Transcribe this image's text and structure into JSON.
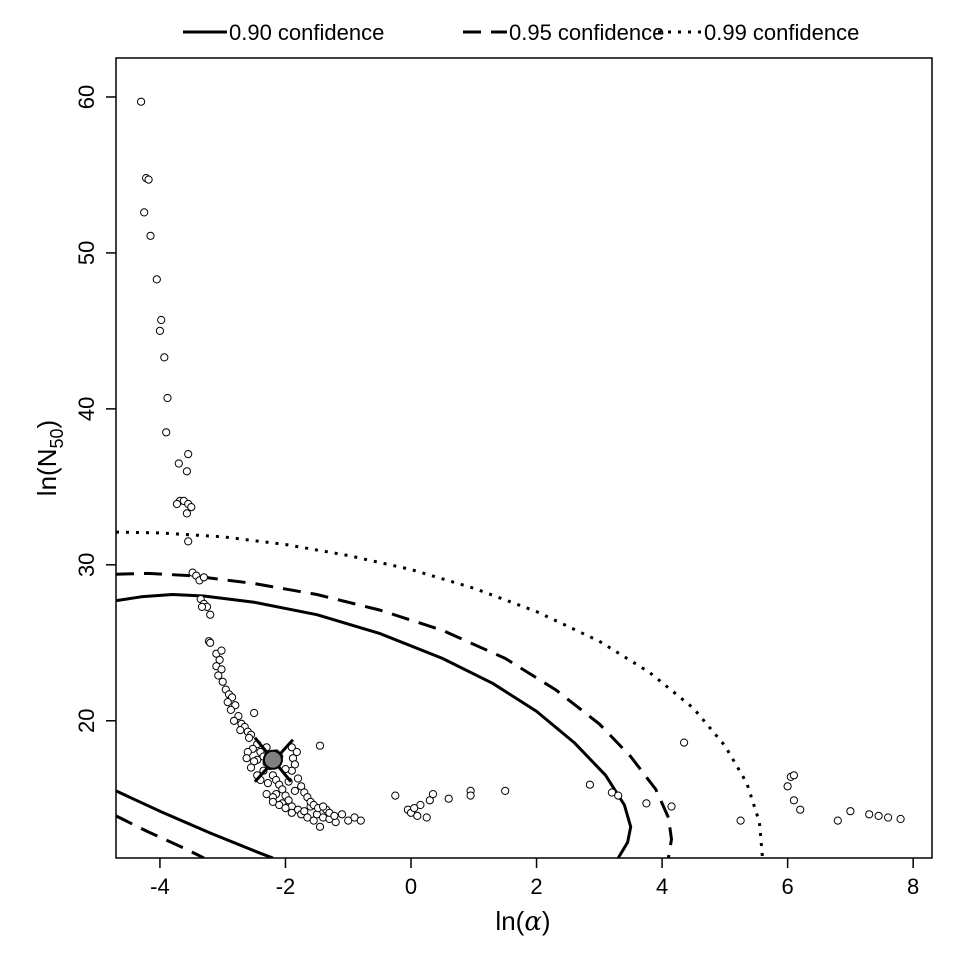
{
  "chart_data": {
    "type": "scatter",
    "xlabel_base": "ln(",
    "xlabel_symbol": "α",
    "xlabel_close": ")",
    "ylabel_base": "ln(N",
    "ylabel_sub": "50",
    "ylabel_close": ")",
    "xlim": [
      -4.7,
      8.3
    ],
    "ylim": [
      11.2,
      62.5
    ],
    "x_ticks": [
      -4,
      -2,
      0,
      2,
      4,
      6,
      8
    ],
    "x_tick_labels": [
      "-4",
      "-2",
      "0",
      "2",
      "4",
      "6",
      "8"
    ],
    "y_ticks": [
      20,
      30,
      40,
      50,
      60
    ],
    "y_tick_labels": [
      "20",
      "30",
      "40",
      "50",
      "60"
    ],
    "grid": false,
    "legend_position": "top",
    "legend": [
      {
        "label": "0.90 confidence",
        "style": "solid"
      },
      {
        "label": "0.95 confidence",
        "style": "dashed"
      },
      {
        "label": "0.99 confidence",
        "style": "dotted"
      }
    ],
    "mle_point": {
      "x": -2.2,
      "y": 17.5
    },
    "series": [
      {
        "style": "solid",
        "points": [
          [
            -4.7,
            27.7
          ],
          [
            -4.3,
            27.95
          ],
          [
            -3.8,
            28.1
          ],
          [
            -3.3,
            28.0
          ],
          [
            -2.5,
            27.6
          ],
          [
            -1.5,
            26.8
          ],
          [
            -0.5,
            25.6
          ],
          [
            0.5,
            24.0
          ],
          [
            1.3,
            22.4
          ],
          [
            2.0,
            20.6
          ],
          [
            2.6,
            18.6
          ],
          [
            3.1,
            16.5
          ],
          [
            3.4,
            14.6
          ],
          [
            3.5,
            13.2
          ],
          [
            3.45,
            12.2
          ],
          [
            3.3,
            11.2
          ]
        ]
      },
      {
        "style": "solid",
        "points": [
          [
            -4.7,
            15.5
          ],
          [
            -4.0,
            14.2
          ],
          [
            -3.2,
            12.8
          ],
          [
            -2.4,
            11.5
          ],
          [
            -2.2,
            11.2
          ]
        ]
      },
      {
        "style": "dashed",
        "points": [
          [
            -4.7,
            29.4
          ],
          [
            -4.2,
            29.45
          ],
          [
            -3.5,
            29.3
          ],
          [
            -2.5,
            28.8
          ],
          [
            -1.5,
            28.1
          ],
          [
            -0.5,
            27.1
          ],
          [
            0.5,
            25.8
          ],
          [
            1.5,
            24.0
          ],
          [
            2.3,
            22.0
          ],
          [
            3.0,
            19.8
          ],
          [
            3.5,
            17.7
          ],
          [
            3.9,
            15.6
          ],
          [
            4.1,
            13.8
          ],
          [
            4.15,
            12.4
          ],
          [
            4.1,
            11.2
          ]
        ]
      },
      {
        "style": "dashed",
        "points": [
          [
            -4.7,
            13.9
          ],
          [
            -4.2,
            12.9
          ],
          [
            -3.6,
            11.8
          ],
          [
            -3.3,
            11.2
          ]
        ]
      },
      {
        "style": "dotted",
        "points": [
          [
            -4.7,
            32.1
          ],
          [
            -4.0,
            32.05
          ],
          [
            -3.0,
            31.8
          ],
          [
            -2.0,
            31.3
          ],
          [
            -1.0,
            30.6
          ],
          [
            0.0,
            29.7
          ],
          [
            1.0,
            28.5
          ],
          [
            2.0,
            27.0
          ],
          [
            3.0,
            25.1
          ],
          [
            3.8,
            23.1
          ],
          [
            4.5,
            20.8
          ],
          [
            5.0,
            18.4
          ],
          [
            5.35,
            16.0
          ],
          [
            5.55,
            13.5
          ],
          [
            5.6,
            11.2
          ]
        ]
      }
    ],
    "points": [
      [
        -4.3,
        59.7
      ],
      [
        -4.22,
        54.8
      ],
      [
        -4.18,
        54.7
      ],
      [
        -4.25,
        52.6
      ],
      [
        -4.15,
        51.1
      ],
      [
        -4.05,
        48.3
      ],
      [
        -3.98,
        45.7
      ],
      [
        -4.0,
        45.0
      ],
      [
        -3.93,
        43.3
      ],
      [
        -3.88,
        40.7
      ],
      [
        -3.9,
        38.5
      ],
      [
        -3.55,
        37.1
      ],
      [
        -3.7,
        36.5
      ],
      [
        -3.57,
        36.0
      ],
      [
        -3.68,
        34.1
      ],
      [
        -3.62,
        34.1
      ],
      [
        -3.73,
        33.9
      ],
      [
        -3.55,
        33.9
      ],
      [
        -3.5,
        33.7
      ],
      [
        -3.57,
        33.3
      ],
      [
        -3.55,
        31.5
      ],
      [
        -3.48,
        29.5
      ],
      [
        -3.42,
        29.3
      ],
      [
        -3.37,
        29.0
      ],
      [
        -3.3,
        29.2
      ],
      [
        -3.35,
        27.8
      ],
      [
        -3.3,
        27.5
      ],
      [
        -3.25,
        27.3
      ],
      [
        -3.33,
        27.3
      ],
      [
        -3.2,
        26.8
      ],
      [
        -3.22,
        25.1
      ],
      [
        -3.2,
        25.0
      ],
      [
        -3.1,
        24.3
      ],
      [
        -3.02,
        24.5
      ],
      [
        -3.05,
        23.9
      ],
      [
        -3.1,
        23.5
      ],
      [
        -3.02,
        23.3
      ],
      [
        -3.07,
        22.9
      ],
      [
        -3.0,
        22.5
      ],
      [
        -2.95,
        22.0
      ],
      [
        -2.9,
        21.7
      ],
      [
        -2.85,
        21.5
      ],
      [
        -2.92,
        21.2
      ],
      [
        -2.8,
        21.0
      ],
      [
        -2.87,
        20.7
      ],
      [
        -2.75,
        20.3
      ],
      [
        -2.82,
        20.0
      ],
      [
        -2.7,
        19.8
      ],
      [
        -2.65,
        19.6
      ],
      [
        -2.6,
        19.3
      ],
      [
        -2.72,
        19.4
      ],
      [
        -2.55,
        19.1
      ],
      [
        -2.5,
        20.5
      ],
      [
        -2.58,
        18.9
      ],
      [
        -2.45,
        18.5
      ],
      [
        -2.52,
        18.2
      ],
      [
        -2.4,
        18.0
      ],
      [
        -2.35,
        17.7
      ],
      [
        -2.45,
        17.5
      ],
      [
        -2.3,
        17.3
      ],
      [
        -2.25,
        17.1
      ],
      [
        -2.35,
        16.8
      ],
      [
        -2.2,
        16.5
      ],
      [
        -2.15,
        16.2
      ],
      [
        -2.28,
        16.0
      ],
      [
        -2.1,
        15.9
      ],
      [
        -2.05,
        15.6
      ],
      [
        -2.15,
        15.3
      ],
      [
        -2.0,
        15.2
      ],
      [
        -1.95,
        14.9
      ],
      [
        -2.05,
        14.7
      ],
      [
        -1.9,
        14.5
      ],
      [
        -1.85,
        15.5
      ],
      [
        -1.8,
        14.3
      ],
      [
        -1.75,
        14.0
      ],
      [
        -1.7,
        14.2
      ],
      [
        -1.65,
        13.8
      ],
      [
        -1.6,
        14.5
      ],
      [
        -1.55,
        13.6
      ],
      [
        -1.5,
        14.0
      ],
      [
        -1.45,
        13.2
      ],
      [
        -1.4,
        13.8
      ],
      [
        -1.35,
        14.3
      ],
      [
        -1.3,
        13.7
      ],
      [
        -1.2,
        13.5
      ],
      [
        -1.1,
        14.0
      ],
      [
        -1.0,
        13.6
      ],
      [
        -0.9,
        13.8
      ],
      [
        -0.8,
        13.6
      ],
      [
        -1.9,
        18.3
      ],
      [
        -1.82,
        18.0
      ],
      [
        -1.88,
        17.6
      ],
      [
        -1.85,
        17.2
      ],
      [
        -1.9,
        16.8
      ],
      [
        -1.8,
        16.3
      ],
      [
        -1.75,
        15.8
      ],
      [
        -1.7,
        15.4
      ],
      [
        -1.65,
        15.1
      ],
      [
        -1.6,
        14.8
      ],
      [
        -1.55,
        14.6
      ],
      [
        -1.48,
        14.4
      ],
      [
        -1.4,
        14.5
      ],
      [
        -1.3,
        14.1
      ],
      [
        -1.22,
        13.9
      ],
      [
        -1.45,
        18.4
      ],
      [
        -2.1,
        17.7
      ],
      [
        -2.0,
        16.9
      ],
      [
        -1.95,
        16.1
      ],
      [
        -2.2,
        15.1
      ],
      [
        -2.3,
        15.3
      ],
      [
        -2.4,
        16.2
      ],
      [
        -2.5,
        17.4
      ],
      [
        -2.6,
        18.0
      ],
      [
        -2.55,
        17.0
      ],
      [
        -2.45,
        16.5
      ],
      [
        -2.2,
        14.8
      ],
      [
        -2.1,
        14.6
      ],
      [
        -2.0,
        14.4
      ],
      [
        -1.9,
        14.1
      ],
      [
        -2.62,
        17.6
      ],
      [
        -2.3,
        18.3
      ],
      [
        -2.15,
        17.9
      ],
      [
        -0.25,
        15.2
      ],
      [
        -0.05,
        14.3
      ],
      [
        0.0,
        14.1
      ],
      [
        0.05,
        14.4
      ],
      [
        0.1,
        13.9
      ],
      [
        0.15,
        14.6
      ],
      [
        0.25,
        13.8
      ],
      [
        0.3,
        14.9
      ],
      [
        0.35,
        15.3
      ],
      [
        0.6,
        15.0
      ],
      [
        0.95,
        15.5
      ],
      [
        0.95,
        15.2
      ],
      [
        1.5,
        15.5
      ],
      [
        2.85,
        15.9
      ],
      [
        3.2,
        15.4
      ],
      [
        3.3,
        15.2
      ],
      [
        3.75,
        14.7
      ],
      [
        4.15,
        14.5
      ],
      [
        4.35,
        18.6
      ],
      [
        5.25,
        13.6
      ],
      [
        6.0,
        15.8
      ],
      [
        6.05,
        16.4
      ],
      [
        6.1,
        16.5
      ],
      [
        6.1,
        14.9
      ],
      [
        6.2,
        14.3
      ],
      [
        6.8,
        13.6
      ],
      [
        7.0,
        14.2
      ],
      [
        7.3,
        14.0
      ],
      [
        7.45,
        13.9
      ],
      [
        7.6,
        13.8
      ],
      [
        7.8,
        13.7
      ]
    ]
  }
}
